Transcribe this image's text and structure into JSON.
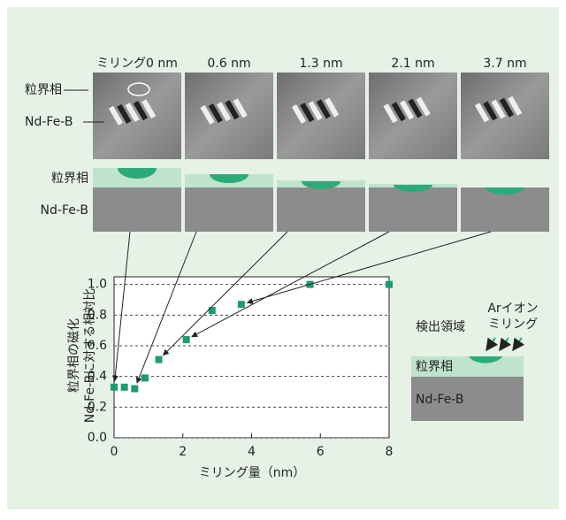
{
  "figure": {
    "panel_labels": [
      "ミリング0 nm",
      "0.6 nm",
      "1.3 nm",
      "2.1 nm",
      "3.7 nm"
    ],
    "image_labels": [
      "粒界相",
      "Nd-Fe-B"
    ],
    "schematic_labels": [
      "粒界相",
      "Nd-Fe-B"
    ],
    "inset": {
      "detect": "検出領域",
      "ion": [
        "Arイオン",
        "ミリング"
      ],
      "layer": "粒界相",
      "substrate": "Nd-Fe-B"
    }
  },
  "chart_data": {
    "type": "scatter",
    "x_label": "ミリング量（nm）",
    "y_label": [
      "粒界相の磁化",
      "Nd-Fe-Bに対する相対比"
    ],
    "x": [
      0,
      0.3,
      0.6,
      0.9,
      1.3,
      2.1,
      2.85,
      3.7,
      5.7,
      8.0
    ],
    "values": [
      0.33,
      0.33,
      0.32,
      0.39,
      0.51,
      0.64,
      0.83,
      0.87,
      1.0,
      1.0
    ],
    "color": "#1d9b73",
    "xlim": [
      0,
      8
    ],
    "ylim": [
      0,
      1.05
    ],
    "xticks": [
      0,
      2,
      4,
      6,
      8
    ],
    "yticks": [
      {
        "value": 0,
        "label": "0.0"
      },
      0.2,
      0.4,
      0.6,
      0.8,
      {
        "value": 1,
        "label": "1.0"
      }
    ],
    "grid": true
  }
}
